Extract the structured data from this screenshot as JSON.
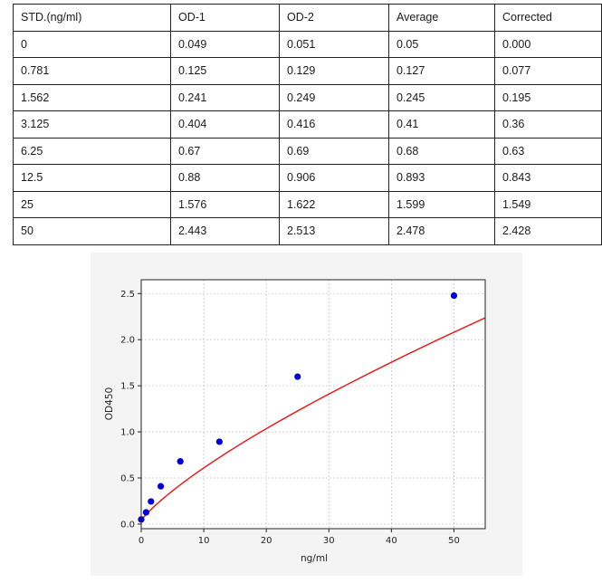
{
  "table": {
    "headers": [
      "STD.(ng/ml)",
      "OD-1",
      "OD-2",
      "Average",
      "Corrected"
    ],
    "rows": [
      [
        "0",
        "0.049",
        "0.051",
        "0.05",
        "0.000"
      ],
      [
        "0.781",
        "0.125",
        "0.129",
        "0.127",
        "0.077"
      ],
      [
        "1.562",
        "0.241",
        "0.249",
        "0.245",
        "0.195"
      ],
      [
        "3.125",
        "0.404",
        "0.416",
        "0.41",
        "0.36"
      ],
      [
        "6.25",
        "0.67",
        "0.69",
        "0.68",
        "0.63"
      ],
      [
        "12.5",
        "0.88",
        "0.906",
        "0.893",
        "0.843"
      ],
      [
        "25",
        "1.576",
        "1.622",
        "1.599",
        "1.549"
      ],
      [
        "50",
        "2.443",
        "2.513",
        "2.478",
        "2.428"
      ]
    ]
  },
  "chart_data": {
    "type": "scatter",
    "title": "",
    "xlabel": "ng/ml",
    "ylabel": "OD450",
    "xlim": [
      0,
      55
    ],
    "ylim": [
      -0.05,
      2.65
    ],
    "xticks": [
      0,
      10,
      20,
      30,
      40,
      50
    ],
    "yticks": [
      0.0,
      0.5,
      1.0,
      1.5,
      2.0,
      2.5
    ],
    "ytick_labels": [
      "0.0",
      "0.5",
      "1.0",
      "1.5",
      "2.0",
      "2.5"
    ],
    "grid": true,
    "points": {
      "x": [
        0,
        0.781,
        1.562,
        3.125,
        6.25,
        12.5,
        25,
        50
      ],
      "y": [
        0.05,
        0.127,
        0.245,
        0.41,
        0.68,
        0.893,
        1.599,
        2.478
      ],
      "color": "#0000cc"
    },
    "fit_curve": {
      "x": [
        0,
        0.5,
        1,
        2,
        3,
        4,
        5,
        6,
        7,
        8,
        9,
        10,
        12,
        14,
        16,
        18,
        20,
        22,
        24,
        26,
        28,
        30,
        33,
        36,
        39,
        42,
        45,
        48,
        51,
        55
      ],
      "y": [
        0.05,
        0.083,
        0.119,
        0.186,
        0.247,
        0.305,
        0.36,
        0.413,
        0.464,
        0.514,
        0.562,
        0.609,
        0.7,
        0.788,
        0.873,
        0.955,
        1.035,
        1.113,
        1.189,
        1.264,
        1.338,
        1.41,
        1.516,
        1.62,
        1.722,
        1.822,
        1.92,
        2.017,
        2.112,
        2.237
      ],
      "color": "#dd2222"
    },
    "colors": {
      "background": "#f4f4f4",
      "plot_area": "#ffffff",
      "grid": "#c8c8c8"
    }
  }
}
